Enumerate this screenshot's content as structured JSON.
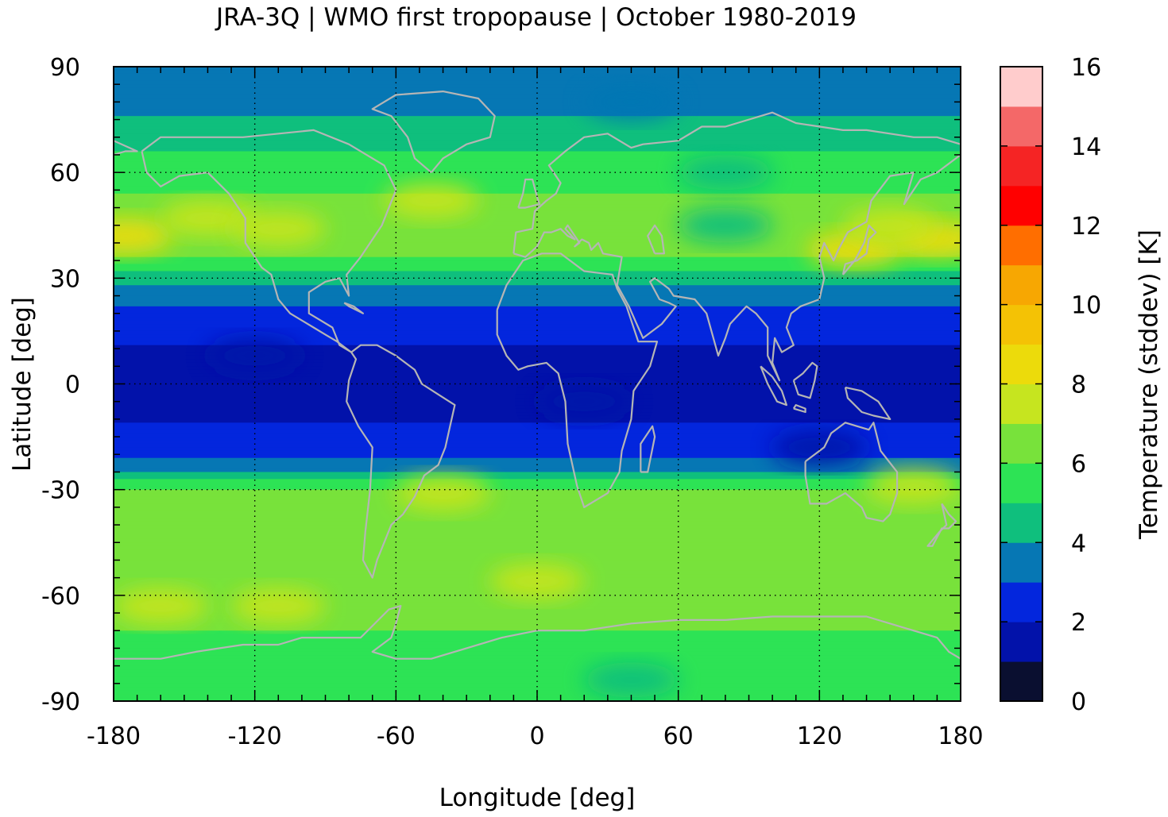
{
  "chart_data": {
    "type": "heatmap",
    "title": "JRA-3Q | WMO first tropopause | October 1980-2019",
    "xlabel": "Longitude [deg]",
    "ylabel": "Latitude [deg]",
    "colorbar_label": "Temperature (stddev) [K]",
    "xlim": [
      -180,
      180
    ],
    "ylim": [
      -90,
      90
    ],
    "xticks": [
      "-180",
      "-120",
      "-60",
      "0",
      "60",
      "120",
      "180"
    ],
    "yticks": [
      "90",
      "60",
      "30",
      "0",
      "-30",
      "-60",
      "-90"
    ],
    "grid": true,
    "colorbar": {
      "range": [
        0,
        16
      ],
      "step": 1,
      "tick_labels": [
        "0",
        "2",
        "4",
        "6",
        "8",
        "10",
        "12",
        "14",
        "16"
      ],
      "colors": [
        "#0a0f30",
        "#0212aa",
        "#0326dd",
        "#0677b4",
        "#0fbf7d",
        "#2de355",
        "#78e23b",
        "#c6e51f",
        "#ecdb0b",
        "#f4c205",
        "#f7a702",
        "#ff6e00",
        "#ff0000",
        "#f52424",
        "#f46868",
        "#ffcccc"
      ]
    },
    "zonal_mean_profile": {
      "latitude": [
        90,
        80,
        70,
        65,
        60,
        50,
        42,
        35,
        30,
        25,
        20,
        10,
        0,
        -8,
        -15,
        -20,
        -25,
        -30,
        -40,
        -50,
        -60,
        -65,
        -70,
        -80,
        -90
      ],
      "value": [
        3.5,
        3.6,
        4.5,
        5.2,
        5.5,
        6.3,
        6.9,
        5.8,
        4.3,
        3.6,
        2.6,
        1.9,
        1.8,
        1.8,
        2.2,
        2.8,
        4.0,
        6.2,
        6.3,
        6.5,
        6.7,
        6.8,
        6.0,
        5.5,
        5.3
      ]
    },
    "anomalies": [
      {
        "lon": 170,
        "lat": 41,
        "value": 8.6
      },
      {
        "lon": 135,
        "lat": 38,
        "value": 8.4
      },
      {
        "lon": 150,
        "lat": 45,
        "value": 7.5
      },
      {
        "lon": -175,
        "lat": 42,
        "value": 8.4
      },
      {
        "lon": -140,
        "lat": 47,
        "value": 7.4
      },
      {
        "lon": -110,
        "lat": 44,
        "value": 7.2
      },
      {
        "lon": -45,
        "lat": 52,
        "value": 7.0
      },
      {
        "lon": -160,
        "lat": -63,
        "value": 7.7
      },
      {
        "lon": -110,
        "lat": -63,
        "value": 7.3
      },
      {
        "lon": 160,
        "lat": -29,
        "value": 7.6
      },
      {
        "lon": -40,
        "lat": -31,
        "value": 7.5
      },
      {
        "lon": 0,
        "lat": -56,
        "value": 7.1
      },
      {
        "lon": 40,
        "lat": -84,
        "value": 4.6
      },
      {
        "lon": 80,
        "lat": 60,
        "value": 4.8
      },
      {
        "lon": 80,
        "lat": 45,
        "value": 4.2
      },
      {
        "lon": 40,
        "lat": 80,
        "value": 3.4
      },
      {
        "lon": -120,
        "lat": 8,
        "value": 1.3
      },
      {
        "lon": 20,
        "lat": -5,
        "value": 1.4
      },
      {
        "lon": 120,
        "lat": -18,
        "value": 1.6
      }
    ]
  }
}
